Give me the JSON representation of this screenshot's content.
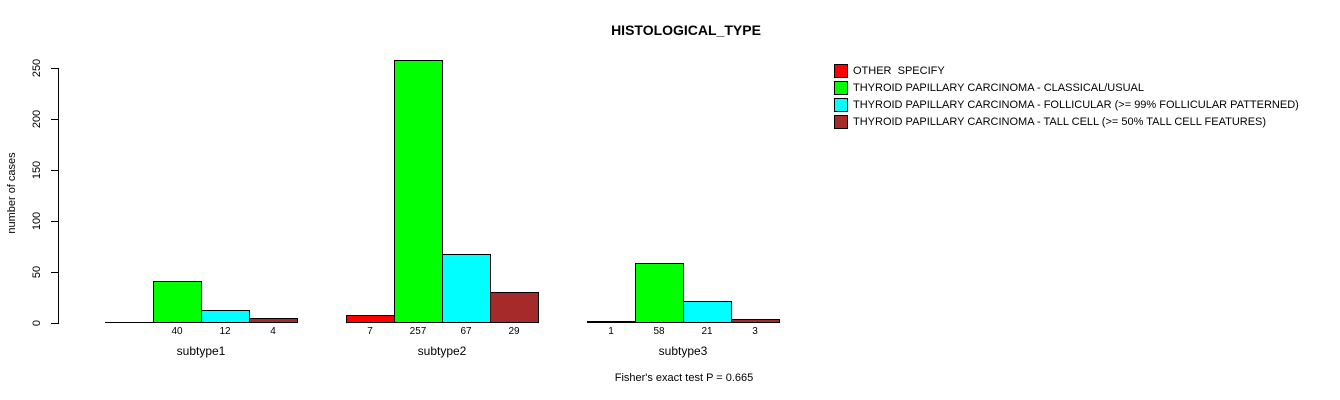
{
  "chart_data": {
    "type": "bar",
    "title": "HISTOLOGICAL_TYPE",
    "ylabel": "number of cases",
    "xlabel": "",
    "yticks": [
      0,
      50,
      100,
      150,
      200,
      250
    ],
    "ylim": [
      0,
      260
    ],
    "grid": false,
    "legend_position": "right",
    "categories": [
      "subtype1",
      "subtype2",
      "subtype3"
    ],
    "series": [
      {
        "name": "OTHER  SPECIFY",
        "color": "#ff0000",
        "values": [
          0,
          7,
          1
        ]
      },
      {
        "name": "THYROID PAPILLARY CARCINOMA - CLASSICAL/USUAL",
        "color": "#00ff00",
        "values": [
          40,
          257,
          58
        ]
      },
      {
        "name": "THYROID PAPILLARY CARCINOMA - FOLLICULAR (>= 99% FOLLICULAR PATTERNED)",
        "color": "#00ffff",
        "values": [
          12,
          67,
          21
        ]
      },
      {
        "name": "THYROID PAPILLARY CARCINOMA - TALL CELL (>= 50% TALL CELL FEATURES)",
        "color": "#a52a2a",
        "values": [
          4,
          29,
          3
        ]
      }
    ],
    "annotation": "Fisher's exact test P = 0.665"
  }
}
